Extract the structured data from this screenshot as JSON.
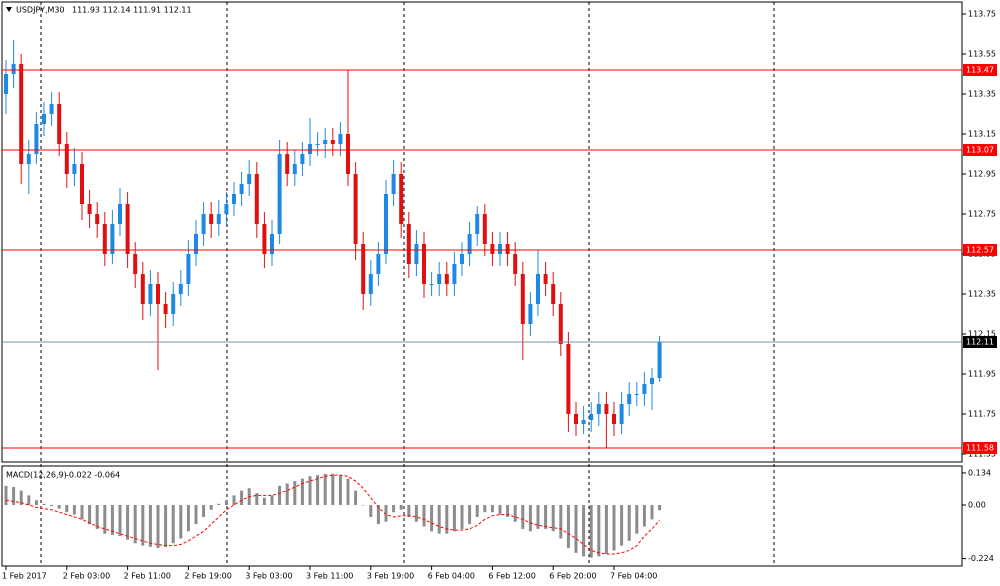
{
  "chart_data": [
    {
      "type": "candlestick",
      "title": "USDJPY,M30",
      "readout": "111.93 112.14 111.91 112.11",
      "categories": [
        "1 Feb 2017",
        null,
        null,
        null,
        null,
        null,
        null,
        null,
        "2 Feb 03:00",
        null,
        null,
        null,
        null,
        null,
        null,
        null,
        "2 Feb 11:00",
        null,
        null,
        null,
        null,
        null,
        null,
        null,
        "2 Feb 19:00",
        null,
        null,
        null,
        null,
        null,
        null,
        null,
        "3 Feb 03:00",
        null,
        null,
        null,
        null,
        null,
        null,
        null,
        "3 Feb 11:00",
        null,
        null,
        null,
        null,
        null,
        null,
        null,
        "3 Feb 19:00",
        null,
        null,
        null,
        null,
        null,
        null,
        null,
        "6 Feb 04:00",
        null,
        null,
        null,
        null,
        null,
        null,
        null,
        "6 Feb 12:00",
        null,
        null,
        null,
        null,
        null,
        null,
        null,
        "6 Feb 20:00",
        null,
        null,
        null,
        null,
        null,
        null,
        null,
        "7 Feb 04:00",
        null,
        null,
        null,
        null,
        null,
        null
      ],
      "open": [
        113.35,
        113.45,
        113.5,
        113.0,
        113.05,
        113.2,
        113.25,
        113.3,
        113.1,
        112.95,
        113.0,
        112.8,
        112.75,
        112.7,
        112.55,
        112.7,
        112.8,
        112.55,
        112.45,
        112.3,
        112.4,
        112.3,
        112.25,
        112.35,
        112.4,
        112.55,
        112.65,
        112.75,
        112.7,
        112.75,
        112.8,
        112.85,
        112.9,
        112.95,
        112.7,
        112.55,
        112.65,
        113.05,
        112.95,
        113.0,
        113.05,
        113.1,
        113.1,
        113.12,
        113.1,
        113.15,
        112.95,
        112.6,
        112.35,
        112.45,
        112.55,
        112.85,
        112.95,
        112.7,
        112.5,
        112.6,
        112.4,
        112.4,
        112.45,
        112.4,
        112.5,
        112.55,
        112.65,
        112.75,
        112.6,
        112.55,
        112.6,
        112.55,
        112.45,
        112.2,
        112.3,
        112.45,
        112.4,
        112.3,
        112.1,
        111.75,
        111.7,
        111.72,
        111.75,
        111.8,
        111.75,
        111.7,
        111.8,
        111.85,
        111.85,
        111.9,
        111.93
      ],
      "high": [
        113.52,
        113.62,
        113.55,
        113.12,
        113.26,
        113.31,
        113.36,
        113.36,
        113.16,
        113.08,
        113.06,
        112.87,
        112.81,
        112.76,
        112.77,
        112.88,
        112.86,
        112.61,
        112.51,
        112.47,
        112.46,
        112.36,
        112.41,
        112.47,
        112.62,
        112.72,
        112.81,
        112.81,
        112.82,
        112.86,
        112.91,
        112.96,
        113.02,
        113.01,
        112.76,
        112.72,
        113.12,
        113.11,
        113.07,
        113.11,
        113.23,
        113.16,
        113.18,
        113.18,
        113.21,
        113.47,
        113.01,
        112.66,
        112.52,
        112.61,
        112.92,
        113.02,
        113.01,
        112.76,
        112.67,
        112.66,
        112.46,
        112.51,
        112.51,
        112.56,
        112.61,
        112.71,
        112.79,
        112.8,
        112.66,
        112.66,
        112.66,
        112.61,
        112.51,
        112.36,
        112.57,
        112.51,
        112.46,
        112.36,
        112.16,
        111.81,
        111.79,
        111.81,
        111.86,
        111.86,
        111.81,
        111.86,
        111.91,
        111.91,
        111.96,
        111.98,
        112.14
      ],
      "low": [
        113.25,
        113.38,
        112.9,
        112.85,
        113.0,
        113.14,
        113.19,
        113.04,
        112.88,
        112.89,
        112.72,
        112.68,
        112.63,
        112.49,
        112.5,
        112.64,
        112.48,
        112.38,
        112.22,
        112.24,
        111.97,
        112.18,
        112.19,
        112.29,
        112.34,
        112.49,
        112.59,
        112.63,
        112.64,
        112.69,
        112.74,
        112.79,
        112.84,
        112.63,
        112.48,
        112.49,
        112.6,
        112.89,
        112.89,
        112.94,
        112.99,
        113.04,
        113.03,
        113.04,
        113.04,
        112.89,
        112.52,
        112.27,
        112.29,
        112.39,
        112.5,
        112.79,
        112.63,
        112.43,
        112.44,
        112.33,
        112.34,
        112.34,
        112.34,
        112.34,
        112.44,
        112.49,
        112.59,
        112.54,
        112.49,
        112.49,
        112.49,
        112.39,
        112.02,
        112.14,
        112.24,
        112.34,
        112.24,
        112.04,
        111.66,
        111.64,
        111.65,
        111.66,
        111.69,
        111.58,
        111.64,
        111.65,
        111.74,
        111.79,
        111.79,
        111.77,
        111.91
      ],
      "close": [
        113.45,
        113.5,
        113.0,
        113.05,
        113.2,
        113.25,
        113.3,
        113.1,
        112.95,
        113.0,
        112.8,
        112.75,
        112.7,
        112.55,
        112.7,
        112.8,
        112.55,
        112.45,
        112.3,
        112.4,
        112.3,
        112.25,
        112.35,
        112.4,
        112.55,
        112.65,
        112.75,
        112.7,
        112.75,
        112.8,
        112.85,
        112.9,
        112.95,
        112.7,
        112.55,
        112.65,
        113.05,
        112.95,
        113.0,
        113.05,
        113.1,
        113.1,
        113.12,
        113.1,
        113.15,
        112.95,
        112.6,
        112.35,
        112.45,
        112.55,
        112.85,
        112.95,
        112.7,
        112.5,
        112.6,
        112.4,
        112.4,
        112.45,
        112.4,
        112.5,
        112.55,
        112.65,
        112.75,
        112.6,
        112.55,
        112.6,
        112.55,
        112.45,
        112.2,
        112.3,
        112.45,
        112.4,
        112.3,
        112.1,
        111.75,
        111.7,
        111.72,
        111.75,
        111.8,
        111.75,
        111.7,
        111.8,
        111.85,
        111.85,
        111.9,
        111.93,
        112.11
      ],
      "up_color": "#1e88e5",
      "down_color": "#e01010",
      "ylim": [
        111.51,
        113.81
      ],
      "yticks": [
        113.75,
        113.55,
        113.35,
        113.15,
        112.95,
        112.75,
        112.55,
        112.35,
        112.15,
        111.95,
        111.75,
        111.55
      ],
      "levels": {
        "values": [
          113.47,
          113.07,
          112.57,
          111.58
        ],
        "color": "#ff0000"
      },
      "last_price": {
        "value": 112.11,
        "color": "#7890a8"
      }
    },
    {
      "type": "macd",
      "title": "MACD(12,26,9)",
      "readout": "-0.022 -0.064",
      "series": [
        {
          "color": "#8c8c8c",
          "values": [
            0.08,
            0.075,
            0.06,
            0.04,
            0.02,
            0.005,
            -0.005,
            -0.015,
            -0.03,
            -0.04,
            -0.06,
            -0.08,
            -0.1,
            -0.12,
            -0.125,
            -0.13,
            -0.145,
            -0.16,
            -0.17,
            -0.175,
            -0.18,
            -0.175,
            -0.16,
            -0.14,
            -0.11,
            -0.08,
            -0.05,
            -0.02,
            0.005,
            0.02,
            0.04,
            0.06,
            0.07,
            0.05,
            0.03,
            0.04,
            0.08,
            0.09,
            0.1,
            0.11,
            0.12,
            0.125,
            0.13,
            0.13,
            0.125,
            0.11,
            0.06,
            0.0,
            -0.05,
            -0.08,
            -0.07,
            -0.03,
            -0.02,
            -0.05,
            -0.07,
            -0.09,
            -0.11,
            -0.12,
            -0.12,
            -0.11,
            -0.1,
            -0.08,
            -0.05,
            -0.03,
            -0.03,
            -0.04,
            -0.05,
            -0.07,
            -0.1,
            -0.11,
            -0.1,
            -0.1,
            -0.11,
            -0.14,
            -0.18,
            -0.2,
            -0.215,
            -0.22,
            -0.215,
            -0.205,
            -0.19,
            -0.17,
            -0.15,
            -0.12,
            -0.09,
            -0.06,
            -0.022
          ]
        },
        {
          "color": "#ff0000",
          "values": [
            0.02,
            0.015,
            0.01,
            0.0,
            -0.01,
            -0.015,
            -0.02,
            -0.03,
            -0.04,
            -0.05,
            -0.06,
            -0.075,
            -0.09,
            -0.1,
            -0.11,
            -0.12,
            -0.13,
            -0.14,
            -0.15,
            -0.16,
            -0.165,
            -0.17,
            -0.17,
            -0.165,
            -0.15,
            -0.13,
            -0.11,
            -0.08,
            -0.05,
            -0.02,
            0.0,
            0.02,
            0.035,
            0.04,
            0.04,
            0.04,
            0.05,
            0.06,
            0.075,
            0.09,
            0.1,
            0.11,
            0.12,
            0.125,
            0.125,
            0.12,
            0.1,
            0.07,
            0.03,
            -0.01,
            -0.04,
            -0.05,
            -0.045,
            -0.045,
            -0.05,
            -0.06,
            -0.075,
            -0.09,
            -0.1,
            -0.105,
            -0.105,
            -0.1,
            -0.085,
            -0.06,
            -0.045,
            -0.04,
            -0.04,
            -0.05,
            -0.06,
            -0.075,
            -0.085,
            -0.09,
            -0.095,
            -0.1,
            -0.12,
            -0.14,
            -0.165,
            -0.19,
            -0.2,
            -0.205,
            -0.205,
            -0.2,
            -0.19,
            -0.17,
            -0.13,
            -0.1,
            -0.064
          ]
        }
      ],
      "ylim": [
        -0.255,
        0.163
      ],
      "yticks": [
        0.134,
        {
          "value": 0,
          "label": "0.00"
        },
        -0.224
      ]
    }
  ]
}
